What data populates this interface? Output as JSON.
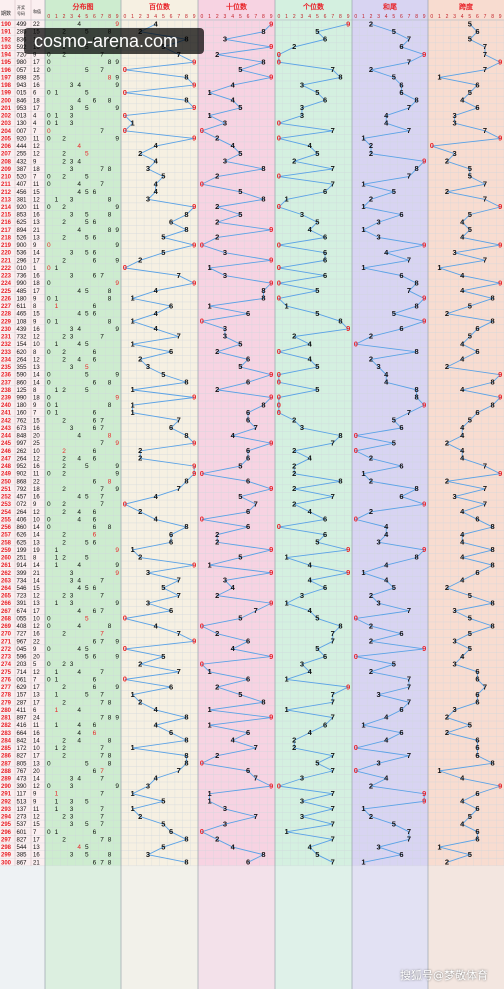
{
  "header": {
    "col_issue": "期数",
    "col_code_line1": "开奖",
    "col_code_line2": "号码",
    "col_sum": "和值",
    "sections": [
      "分布图",
      "百位数",
      "十位数",
      "个位数",
      "和尾",
      "跨度"
    ],
    "digits": [
      "0",
      "1",
      "2",
      "3",
      "4",
      "5",
      "6",
      "7",
      "8",
      "9"
    ]
  },
  "watermark": "cosmo-arena.com",
  "footer": "搜狐号@梦敬体育",
  "colors": {
    "distribution": "#cdeccf",
    "hundreds": "#f6f0e2",
    "tens": "#f7d3e2",
    "units": "#d4f0e0",
    "sum_tail": "#d8d4f2",
    "span": "#f8dcd0",
    "line": "#5aa2e6",
    "red": "#e8242a",
    "grid": "#cfd6dc"
  },
  "chart_data": {
    "type": "table",
    "first_issue": 190,
    "issues": [
      "190",
      "191",
      "192",
      "193",
      "194",
      "195",
      "196",
      "197",
      "198",
      "199",
      "200",
      "201",
      "202",
      "203",
      "204",
      "205",
      "206",
      "207",
      "208",
      "209",
      "210",
      "211",
      "212",
      "213",
      "214",
      "215",
      "216",
      "217",
      "218",
      "219",
      "220",
      "221",
      "222",
      "223",
      "224",
      "225",
      "226",
      "227",
      "228",
      "229",
      "230",
      "231",
      "232",
      "233",
      "234",
      "235",
      "236",
      "237",
      "238",
      "239",
      "240",
      "241",
      "242",
      "243",
      "244",
      "245",
      "246",
      "247",
      "248",
      "249",
      "250",
      "251",
      "252",
      "253",
      "254",
      "255",
      "256",
      "257",
      "258",
      "259",
      "260",
      "261",
      "262",
      "263",
      "264",
      "265",
      "266",
      "267",
      "268",
      "269",
      "270",
      "271",
      "272",
      "273",
      "274",
      "275",
      "276",
      "277",
      "278",
      "279",
      "280",
      "281",
      "282",
      "283",
      "284",
      "285",
      "286",
      "287",
      "288",
      "289",
      "290",
      "291",
      "292",
      "293",
      "294",
      "295",
      "296",
      "297",
      "298",
      "299",
      "300"
    ],
    "draws": [
      "499",
      "285",
      "836",
      "592",
      "720",
      "980",
      "057",
      "898",
      "943",
      "015",
      "846",
      "953",
      "013",
      "130",
      "007",
      "920",
      "444",
      "255",
      "432",
      "387",
      "520",
      "407",
      "456",
      "381",
      "920",
      "853",
      "625",
      "894",
      "526",
      "900",
      "536",
      "296",
      "010",
      "736",
      "990",
      "485",
      "180",
      "611",
      "465",
      "108",
      "439",
      "732",
      "154",
      "620",
      "264",
      "355",
      "590",
      "860",
      "125",
      "990",
      "180",
      "160",
      "762",
      "673",
      "848",
      "997",
      "262",
      "264",
      "952",
      "902",
      "868",
      "792",
      "457",
      "072",
      "264",
      "406",
      "860",
      "626",
      "625",
      "199",
      "251",
      "914",
      "399",
      "734",
      "546",
      "723",
      "391",
      "674",
      "055",
      "408",
      "727",
      "967",
      "045",
      "596",
      "203",
      "714",
      "061",
      "629",
      "157",
      "287",
      "411",
      "897",
      "416",
      "664",
      "842",
      "172",
      "827",
      "805",
      "767",
      "473",
      "390",
      "117",
      "513",
      "137",
      "273",
      "537",
      "601",
      "827",
      "544",
      "385",
      "867"
    ],
    "y_labels": [
      "hundreds",
      "tens",
      "units",
      "sum_tail",
      "span"
    ],
    "ylim": [
      0,
      9
    ],
    "grid": true
  }
}
